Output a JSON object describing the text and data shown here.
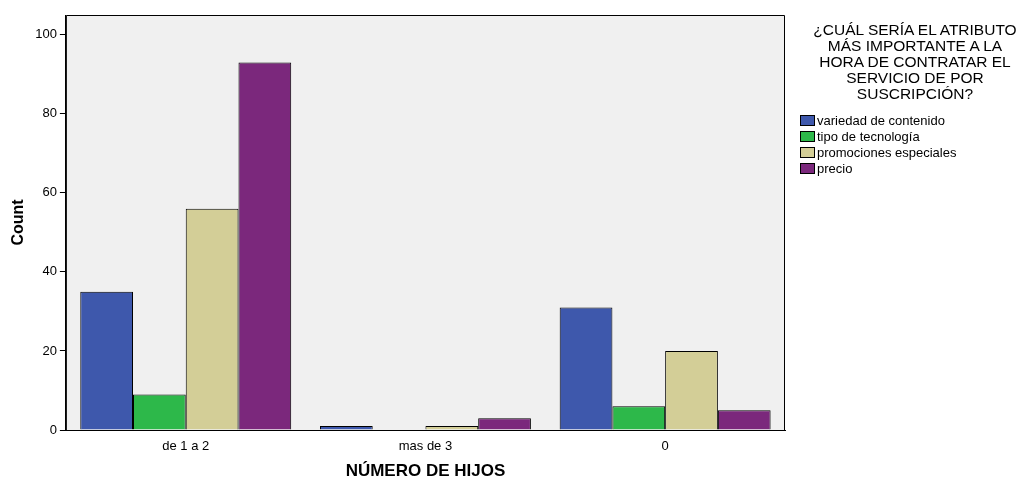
{
  "chart_data": {
    "type": "bar",
    "xlabel": "NÚMERO DE HIJOS",
    "ylabel": "Count",
    "legend_title": "¿CUÁL SERÍA EL ATRIBUTO MÁS IMPORTANTE A LA HORA DE CONTRATAR EL SERVICIO DE POR SUSCRIPCIÓN?",
    "categories": [
      "de 1 a 2",
      "mas de 3",
      "0"
    ],
    "series": [
      {
        "name": "variedad de contenido",
        "color": "#3e58ac",
        "values": [
          35,
          1,
          31
        ]
      },
      {
        "name": "tipo de tecnología",
        "color": "#2db84a",
        "values": [
          9,
          0,
          6
        ]
      },
      {
        "name": "promociones especiales",
        "color": "#d3ce97",
        "values": [
          56,
          1,
          20
        ]
      },
      {
        "name": "precio",
        "color": "#7b287c",
        "values": [
          93,
          3,
          5
        ]
      }
    ],
    "ylim": [
      0,
      105
    ],
    "yticks": [
      0,
      20,
      40,
      60,
      80,
      100
    ],
    "grid": false,
    "legend": "right"
  }
}
